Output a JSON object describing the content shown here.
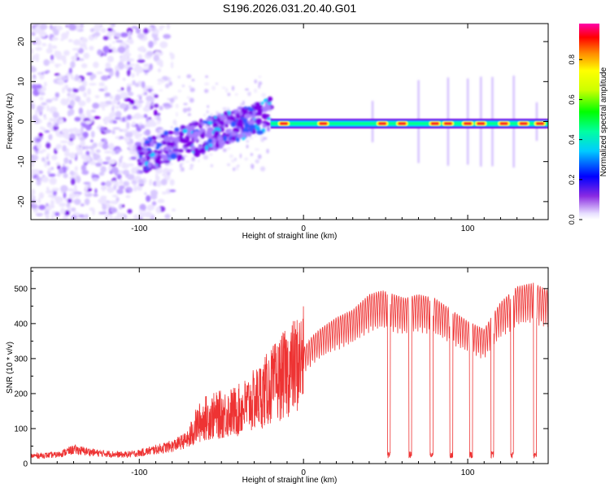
{
  "title": "S196.2026.031.20.40.G01",
  "colors": {
    "snr_line": "#ee3333",
    "axis": "#000000",
    "background": "#ffffff"
  },
  "chart_data": [
    {
      "type": "heatmap",
      "name": "spectrogram",
      "xlabel": "Height of straight line (km)",
      "ylabel": "Frequency (Hz)",
      "xlim": [
        -166,
        149
      ],
      "ylim": [
        -24.5,
        24.5
      ],
      "x_ticks": [
        -100,
        0,
        100
      ],
      "x_tick_labels": [
        "-100",
        "0",
        "100"
      ],
      "y_ticks": [
        -20,
        -10,
        0,
        10,
        20
      ],
      "y_tick_labels": [
        "-20",
        "-10",
        "0",
        "10",
        "20"
      ],
      "colorbar": {
        "label": "Normalized spectral amplitude",
        "range": [
          0,
          0.98
        ],
        "ticks": [
          0.0,
          0.2,
          0.4,
          0.6,
          0.8
        ],
        "tick_labels": [
          "0.0",
          "0.2",
          "0.4",
          "0.6",
          "0.8"
        ]
      },
      "features": {
        "noise_region_km": [
          -166,
          -98
        ],
        "chirp_start": {
          "x": -100,
          "freq": -9
        },
        "chirp_end": {
          "x": -20,
          "freq": 2
        },
        "tone_region_km": [
          -20,
          149
        ],
        "tone_freq": -0.5,
        "bright_spots_km": [
          -12,
          12,
          48,
          60,
          80,
          88,
          100,
          108,
          122,
          134,
          144
        ],
        "vertical_streaks_km": [
          42,
          70,
          88,
          100,
          108,
          115,
          128,
          142
        ]
      }
    },
    {
      "type": "line",
      "name": "snr",
      "xlabel": "Height of straight line (km)",
      "ylabel": "SNR (10 * v/v)",
      "xlim": [
        -166,
        149
      ],
      "ylim": [
        0,
        560
      ],
      "x_ticks": [
        -100,
        0,
        100
      ],
      "x_tick_labels": [
        "-100",
        "0",
        "100"
      ],
      "y_ticks": [
        0,
        100,
        200,
        300,
        400,
        500
      ],
      "y_tick_labels": [
        "0",
        "100",
        "200",
        "300",
        "400",
        "500"
      ],
      "series": [
        {
          "name": "SNR",
          "x": [
            -166,
            -150,
            -140,
            -125,
            -110,
            -100,
            -90,
            -80,
            -70,
            -65,
            -60,
            -50,
            -40,
            -30,
            -20,
            -10,
            -5,
            0,
            5,
            10,
            20,
            30,
            40,
            48,
            55,
            62,
            70,
            80,
            90,
            100,
            110,
            120,
            130,
            140,
            149
          ],
          "y": [
            22,
            25,
            40,
            30,
            25,
            30,
            40,
            50,
            70,
            110,
            130,
            140,
            150,
            180,
            220,
            260,
            280,
            300,
            330,
            350,
            380,
            400,
            440,
            450,
            440,
            430,
            440,
            430,
            400,
            370,
            350,
            420,
            460,
            470,
            450
          ],
          "dips_km": [
            52,
            65,
            78,
            90,
            102,
            115,
            127,
            141
          ],
          "dip_value": 25
        }
      ]
    }
  ]
}
